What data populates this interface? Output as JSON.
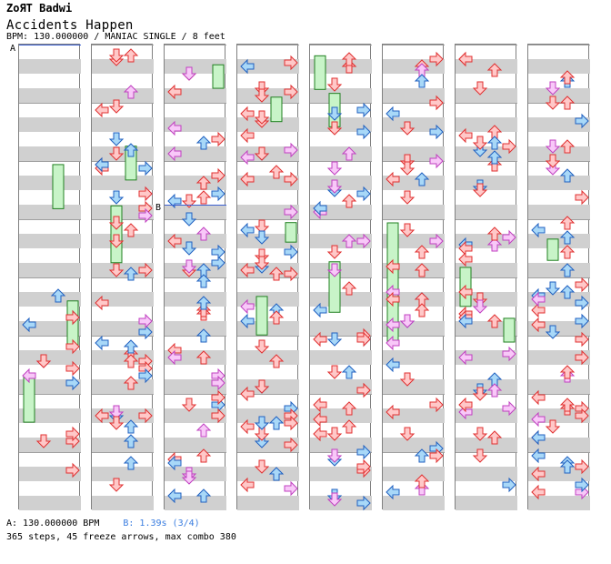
{
  "header": {
    "artist": "ZoЯT Badwi",
    "title": "Accidents Happen",
    "meta": "BPM: 130.000000 / MANIAC SINGLE / 8 feet"
  },
  "footer": {
    "bpm_marker": "A: 130.000000 BPM",
    "stop_marker": "B: 1.39s (3/4)",
    "stats": "365 steps, 45 freeze arrows, max combo 380"
  },
  "markers": {
    "a_label": "A",
    "b_label": "B"
  },
  "colors": {
    "stripe": "#d0d0d0",
    "red_fill": "#ffc8c8",
    "red_stroke": "#e03030",
    "blue_fill": "#a8d8f8",
    "blue_stroke": "#2060c0",
    "pink_fill": "#f8c8f8",
    "pink_stroke": "#c040c0",
    "freeze_fill": "#c8f4c8",
    "freeze_stroke": "#208020",
    "marker_line": "#3a5fd0",
    "stop_text": "#3a7de0"
  }
}
